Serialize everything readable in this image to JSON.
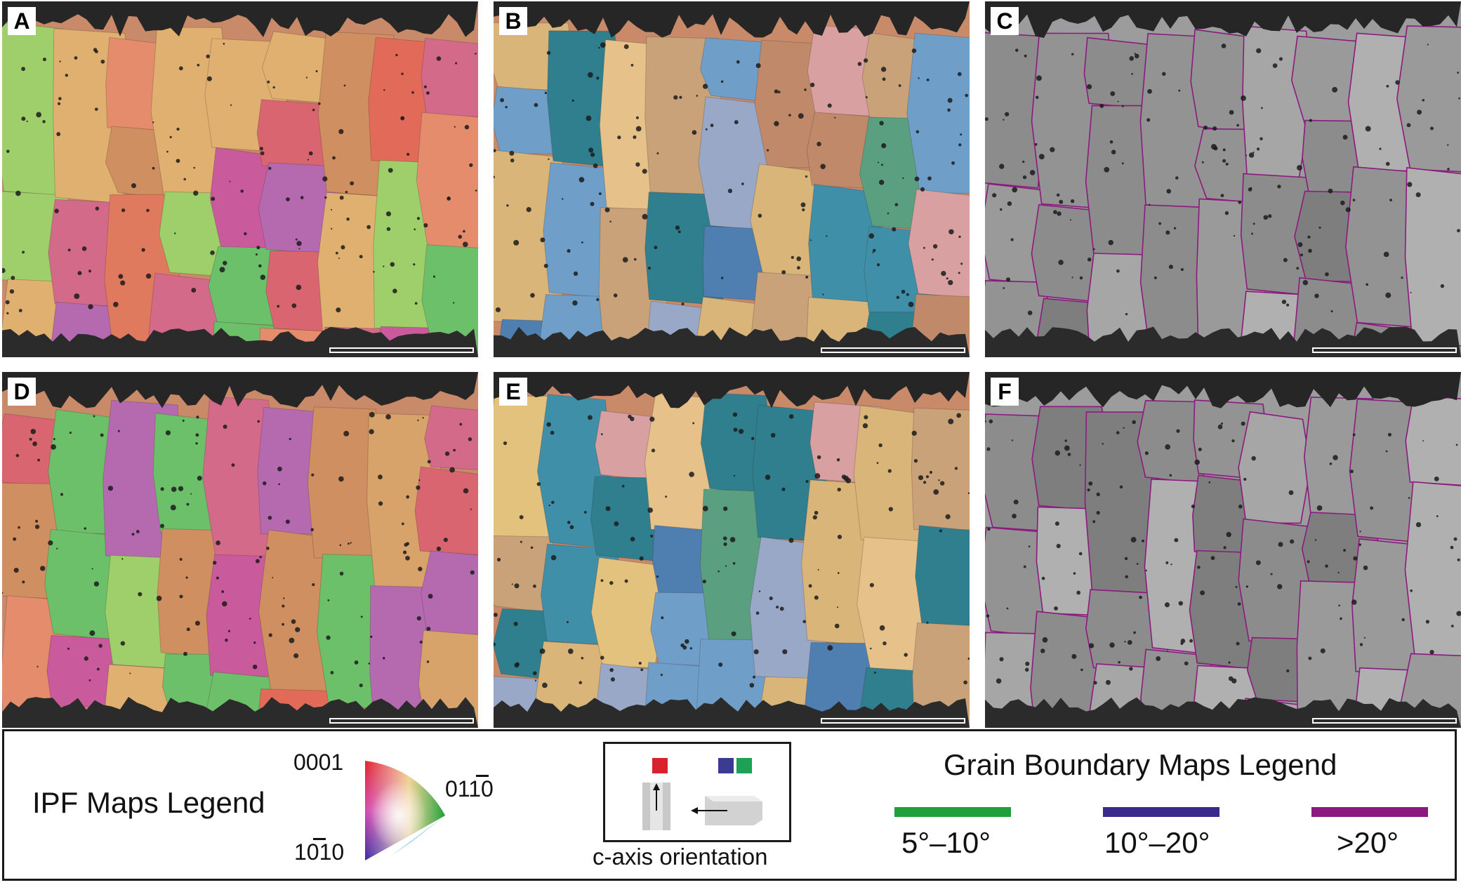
{
  "panels": [
    {
      "letter": "A",
      "kind": "ipf-c"
    },
    {
      "letter": "B",
      "kind": "ipf-a"
    },
    {
      "letter": "C",
      "kind": "gb"
    },
    {
      "letter": "D",
      "kind": "ipf-c"
    },
    {
      "letter": "E",
      "kind": "ipf-a"
    },
    {
      "letter": "F",
      "kind": "gb"
    }
  ],
  "legend": {
    "ipf_title": "IPF Maps Legend",
    "ipf_labels": {
      "top": "0001",
      "right": "0110",
      "bottom": "1010"
    },
    "caxis_label": "c-axis orientation",
    "gb_title": "Grain Boundary Maps Legend",
    "gb_items": [
      {
        "label": "5°–10°",
        "color": "#1fa03a"
      },
      {
        "label": "10°–20°",
        "color": "#3a2a8c"
      },
      {
        "label": ">20°",
        "color": "#8c1a7e"
      }
    ],
    "caxis_colors": {
      "red": "#d8232e",
      "blue": "#3b3b92",
      "green": "#1ea055"
    }
  }
}
